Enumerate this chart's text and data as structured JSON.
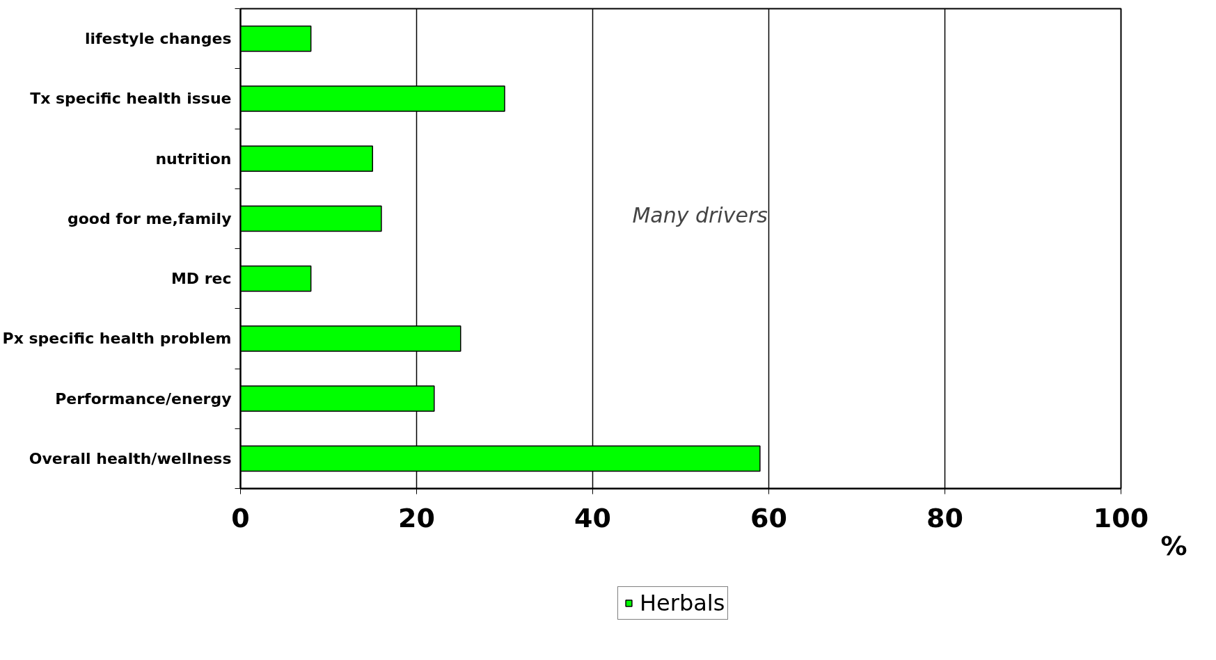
{
  "chart_data": {
    "type": "bar",
    "orientation": "horizontal",
    "xlabel": "%",
    "categories": [
      "lifestyle changes",
      "Tx specific health issue",
      "nutrition",
      "good for me,family",
      "MD rec",
      "Px specific health problem",
      "Performance/energy",
      "Overall health/wellness"
    ],
    "series": [
      {
        "name": "Herbals",
        "color": "#00ff00",
        "values": [
          8,
          30,
          15,
          16,
          8,
          25,
          22,
          59
        ]
      }
    ],
    "xlim": [
      0,
      100
    ],
    "xticks": [
      0,
      20,
      40,
      60,
      80,
      100
    ],
    "grid": "x",
    "legend": "bottom",
    "annotations": [
      "Many drivers"
    ]
  }
}
